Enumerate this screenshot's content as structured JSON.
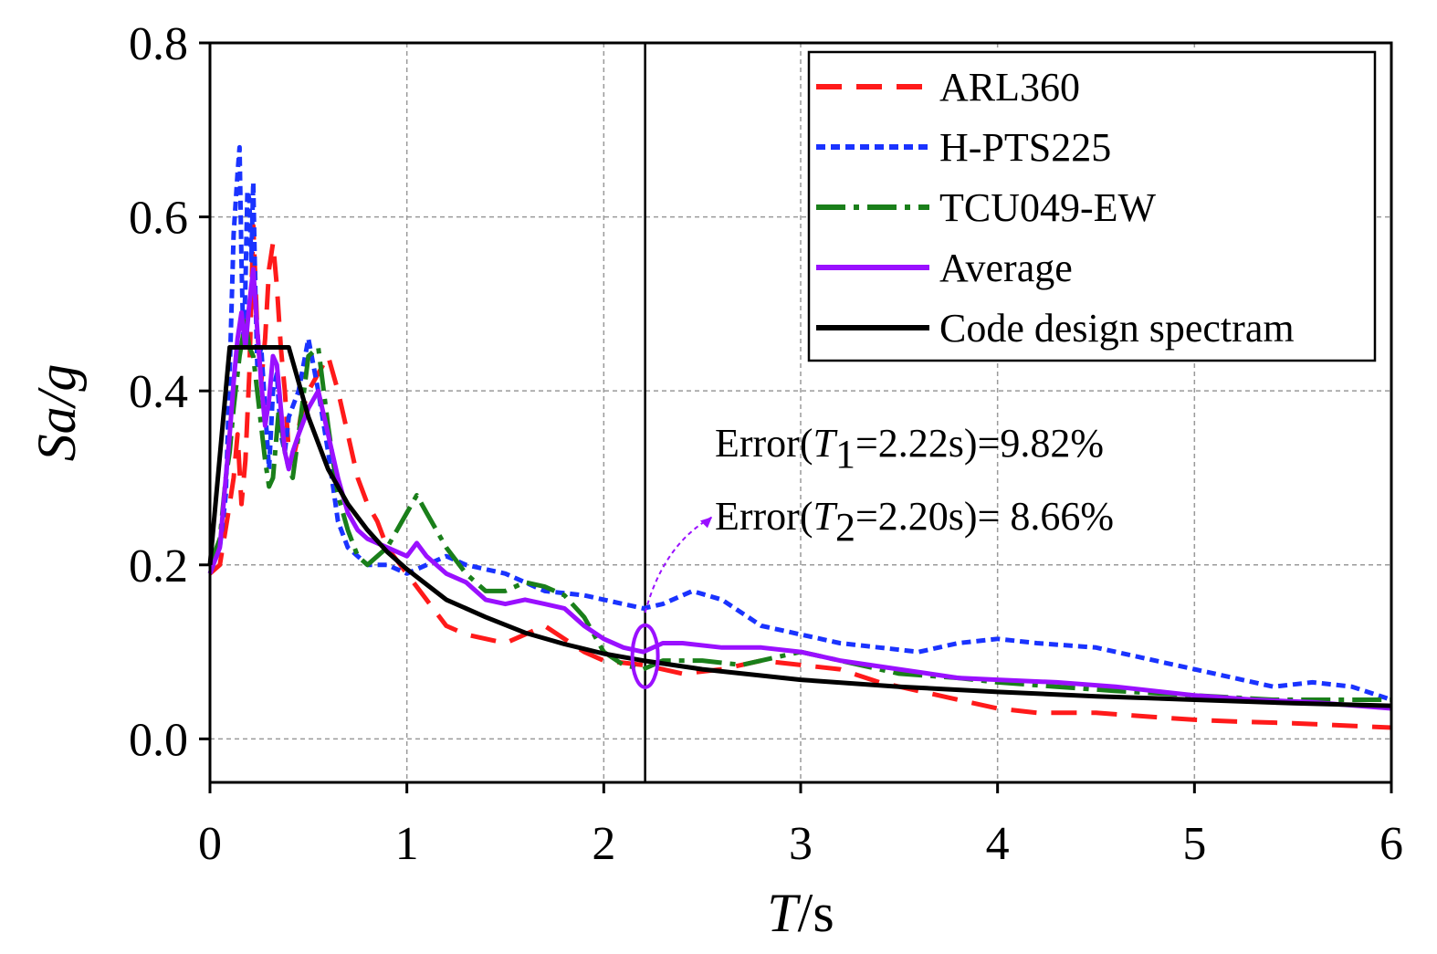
{
  "chart_data": {
    "type": "line",
    "title": "",
    "xlabel_italic": "T",
    "xlabel_rest": "/s",
    "ylabel_part1": "S",
    "ylabel_part2": "a/g",
    "xlim": [
      0,
      6
    ],
    "ylim": [
      -0.05,
      0.8
    ],
    "xticks": [
      0,
      1,
      2,
      3,
      4,
      5,
      6
    ],
    "xtick_labels": [
      "0",
      "1",
      "2",
      "3",
      "4",
      "5",
      "6"
    ],
    "yticks": [
      0.0,
      0.2,
      0.4,
      0.6,
      0.8
    ],
    "ytick_labels": [
      "0.0",
      "0.2",
      "0.4",
      "0.6",
      "0.8"
    ],
    "grid": true,
    "legend_position": "top-right",
    "vline_x": 2.21,
    "series": [
      {
        "name": "ARL360",
        "color": "#ff1a1a",
        "dash": "28 16",
        "width": 5,
        "x": [
          0,
          0.05,
          0.1,
          0.12,
          0.14,
          0.16,
          0.18,
          0.2,
          0.22,
          0.24,
          0.26,
          0.28,
          0.3,
          0.32,
          0.34,
          0.36,
          0.38,
          0.4,
          0.42,
          0.44,
          0.46,
          0.5,
          0.55,
          0.6,
          0.65,
          0.7,
          0.75,
          0.8,
          0.85,
          0.9,
          1.0,
          1.1,
          1.2,
          1.3,
          1.5,
          1.7,
          1.9,
          2.0,
          2.2,
          2.4,
          2.6,
          2.8,
          3.0,
          3.2,
          3.4,
          3.6,
          3.8,
          4.0,
          4.2,
          4.5,
          4.8,
          5.0,
          5.2,
          5.5,
          5.8,
          6.0
        ],
        "y": [
          0.19,
          0.2,
          0.27,
          0.3,
          0.35,
          0.27,
          0.32,
          0.42,
          0.59,
          0.47,
          0.41,
          0.46,
          0.54,
          0.57,
          0.52,
          0.45,
          0.4,
          0.33,
          0.32,
          0.34,
          0.37,
          0.4,
          0.42,
          0.44,
          0.4,
          0.35,
          0.3,
          0.27,
          0.25,
          0.22,
          0.19,
          0.16,
          0.13,
          0.12,
          0.11,
          0.13,
          0.1,
          0.09,
          0.085,
          0.075,
          0.08,
          0.09,
          0.085,
          0.08,
          0.065,
          0.055,
          0.045,
          0.035,
          0.03,
          0.03,
          0.025,
          0.022,
          0.02,
          0.018,
          0.015,
          0.013
        ]
      },
      {
        "name": "H-PTS225",
        "color": "#1a33ff",
        "dash": "10 6",
        "width": 5,
        "x": [
          0,
          0.05,
          0.08,
          0.1,
          0.12,
          0.14,
          0.15,
          0.16,
          0.17,
          0.18,
          0.19,
          0.2,
          0.21,
          0.22,
          0.23,
          0.24,
          0.26,
          0.28,
          0.3,
          0.32,
          0.34,
          0.36,
          0.38,
          0.4,
          0.45,
          0.5,
          0.55,
          0.6,
          0.65,
          0.7,
          0.75,
          0.8,
          0.9,
          1.0,
          1.1,
          1.2,
          1.3,
          1.5,
          1.7,
          1.9,
          2.0,
          2.2,
          2.3,
          2.45,
          2.6,
          2.8,
          3.0,
          3.2,
          3.4,
          3.6,
          3.8,
          4.0,
          4.2,
          4.5,
          4.8,
          5.0,
          5.2,
          5.4,
          5.6,
          5.8,
          6.0
        ],
        "y": [
          0.19,
          0.22,
          0.28,
          0.42,
          0.58,
          0.65,
          0.68,
          0.55,
          0.45,
          0.52,
          0.63,
          0.62,
          0.55,
          0.64,
          0.52,
          0.43,
          0.45,
          0.38,
          0.31,
          0.4,
          0.42,
          0.35,
          0.33,
          0.37,
          0.4,
          0.46,
          0.4,
          0.33,
          0.25,
          0.22,
          0.21,
          0.2,
          0.2,
          0.19,
          0.2,
          0.21,
          0.2,
          0.19,
          0.17,
          0.165,
          0.16,
          0.15,
          0.155,
          0.17,
          0.16,
          0.13,
          0.12,
          0.11,
          0.105,
          0.1,
          0.11,
          0.115,
          0.11,
          0.105,
          0.09,
          0.08,
          0.07,
          0.06,
          0.065,
          0.06,
          0.045
        ]
      },
      {
        "name": "TCU049-EW",
        "color": "#1a7f1a",
        "dash": "32 9 6 9",
        "width": 5,
        "x": [
          0,
          0.05,
          0.08,
          0.1,
          0.12,
          0.15,
          0.18,
          0.2,
          0.22,
          0.25,
          0.28,
          0.3,
          0.32,
          0.35,
          0.38,
          0.4,
          0.42,
          0.45,
          0.5,
          0.55,
          0.6,
          0.65,
          0.7,
          0.75,
          0.8,
          0.9,
          1.0,
          1.05,
          1.1,
          1.2,
          1.3,
          1.4,
          1.5,
          1.6,
          1.7,
          1.8,
          1.9,
          2.0,
          2.1,
          2.2,
          2.3,
          2.5,
          2.7,
          2.9,
          3.0,
          3.2,
          3.5,
          3.8,
          4.0,
          4.3,
          4.6,
          5.0,
          5.4,
          5.7,
          6.0
        ],
        "y": [
          0.2,
          0.23,
          0.3,
          0.33,
          0.38,
          0.44,
          0.48,
          0.45,
          0.44,
          0.38,
          0.32,
          0.29,
          0.3,
          0.38,
          0.33,
          0.31,
          0.3,
          0.35,
          0.44,
          0.45,
          0.36,
          0.28,
          0.24,
          0.21,
          0.2,
          0.22,
          0.26,
          0.28,
          0.26,
          0.22,
          0.19,
          0.17,
          0.17,
          0.18,
          0.175,
          0.165,
          0.14,
          0.1,
          0.085,
          0.08,
          0.09,
          0.09,
          0.085,
          0.095,
          0.1,
          0.09,
          0.075,
          0.07,
          0.065,
          0.06,
          0.055,
          0.05,
          0.045,
          0.045,
          0.045
        ]
      },
      {
        "name": "Average",
        "color": "#9a10ff",
        "dash": "",
        "width": 5,
        "x": [
          0,
          0.05,
          0.08,
          0.1,
          0.12,
          0.14,
          0.16,
          0.18,
          0.2,
          0.22,
          0.24,
          0.26,
          0.28,
          0.3,
          0.32,
          0.34,
          0.36,
          0.38,
          0.4,
          0.42,
          0.45,
          0.5,
          0.55,
          0.6,
          0.65,
          0.7,
          0.75,
          0.8,
          0.9,
          1.0,
          1.05,
          1.1,
          1.2,
          1.3,
          1.4,
          1.5,
          1.6,
          1.7,
          1.8,
          1.9,
          2.0,
          2.1,
          2.2,
          2.3,
          2.4,
          2.6,
          2.8,
          3.0,
          3.2,
          3.5,
          3.8,
          4.0,
          4.3,
          4.6,
          5.0,
          5.3,
          5.6,
          6.0
        ],
        "y": [
          0.19,
          0.22,
          0.3,
          0.35,
          0.41,
          0.46,
          0.49,
          0.45,
          0.5,
          0.54,
          0.47,
          0.41,
          0.36,
          0.39,
          0.44,
          0.43,
          0.38,
          0.33,
          0.31,
          0.33,
          0.35,
          0.38,
          0.4,
          0.35,
          0.3,
          0.26,
          0.24,
          0.23,
          0.22,
          0.21,
          0.225,
          0.21,
          0.19,
          0.18,
          0.16,
          0.155,
          0.16,
          0.155,
          0.15,
          0.13,
          0.115,
          0.105,
          0.1,
          0.11,
          0.11,
          0.105,
          0.105,
          0.1,
          0.09,
          0.08,
          0.07,
          0.068,
          0.065,
          0.06,
          0.05,
          0.045,
          0.042,
          0.035
        ]
      },
      {
        "name": "Code design spectram",
        "color": "#000000",
        "dash": "",
        "width": 5,
        "x": [
          0,
          0.1,
          0.4,
          0.45,
          0.5,
          0.55,
          0.6,
          0.7,
          0.8,
          0.9,
          1.0,
          1.2,
          1.4,
          1.6,
          1.8,
          2.0,
          2.2,
          2.5,
          3.0,
          3.5,
          4.0,
          4.5,
          5.0,
          5.5,
          6.0
        ],
        "y": [
          0.2,
          0.45,
          0.45,
          0.41,
          0.37,
          0.34,
          0.31,
          0.27,
          0.24,
          0.215,
          0.195,
          0.16,
          0.14,
          0.122,
          0.109,
          0.098,
          0.09,
          0.08,
          0.068,
          0.06,
          0.054,
          0.049,
          0.045,
          0.041,
          0.038
        ]
      }
    ],
    "annotations": [
      {
        "pre": "Error(",
        "italic": "T",
        "sub": "1",
        "post": "=2.22s)=9.82%"
      },
      {
        "pre": "Error(",
        "italic": "T",
        "sub": "2",
        "post": "=2.20s)= 8.66%"
      }
    ],
    "ellipse_center": {
      "x": 2.21,
      "y": 0.095
    },
    "arrow_from": {
      "x": 2.21,
      "y": 0.145
    },
    "arrow_to": {
      "x": 2.55,
      "y": 0.255
    }
  }
}
